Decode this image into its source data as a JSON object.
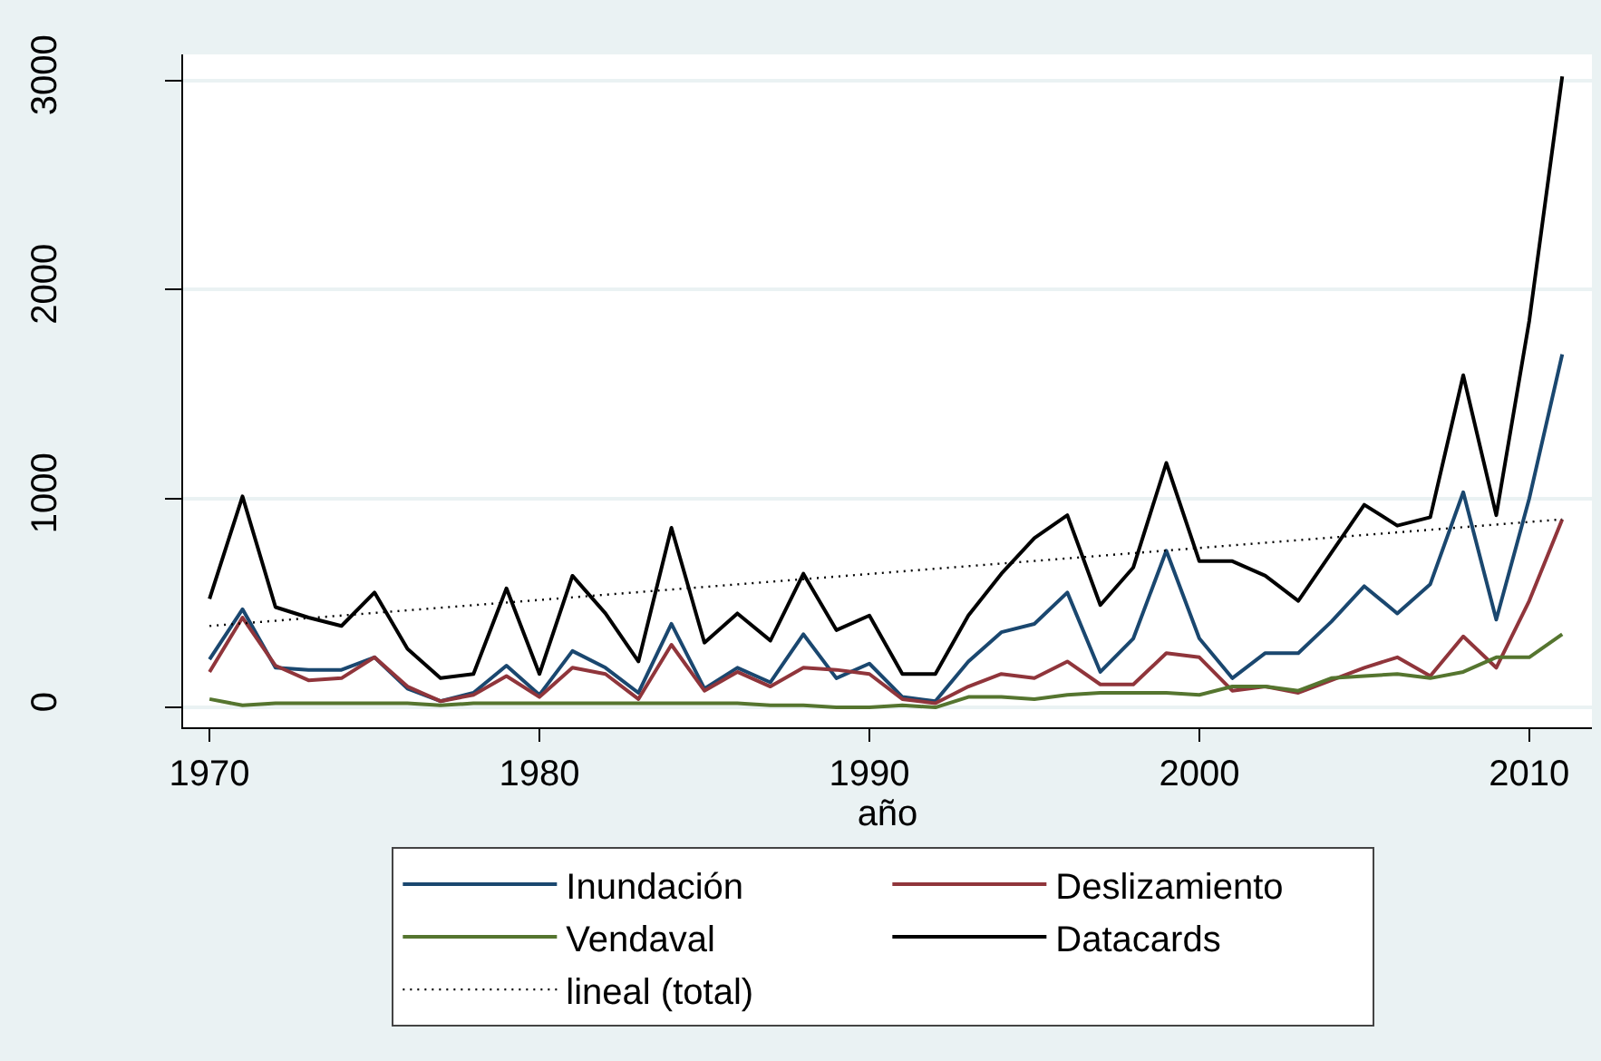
{
  "chart_data": {
    "type": "line",
    "xlabel": "año",
    "x": [
      1970,
      1971,
      1972,
      1973,
      1974,
      1975,
      1976,
      1977,
      1978,
      1979,
      1980,
      1981,
      1982,
      1983,
      1984,
      1985,
      1986,
      1987,
      1988,
      1989,
      1990,
      1991,
      1992,
      1993,
      1994,
      1995,
      1996,
      1997,
      1998,
      1999,
      2000,
      2001,
      2002,
      2003,
      2004,
      2005,
      2006,
      2007,
      2008,
      2009,
      2010,
      2011
    ],
    "series": [
      {
        "name": "Inundación",
        "color": "#1a476f",
        "values": [
          230,
          470,
          190,
          180,
          180,
          240,
          90,
          30,
          70,
          200,
          60,
          270,
          190,
          70,
          400,
          90,
          190,
          120,
          350,
          140,
          210,
          50,
          30,
          220,
          360,
          400,
          550,
          170,
          330,
          750,
          330,
          140,
          260,
          260,
          410,
          580,
          450,
          590,
          1030,
          420,
          1000,
          1690
        ]
      },
      {
        "name": "Deslizamiento",
        "color": "#90353b",
        "values": [
          170,
          430,
          200,
          130,
          140,
          240,
          100,
          30,
          60,
          150,
          50,
          190,
          160,
          40,
          300,
          80,
          170,
          100,
          190,
          180,
          160,
          40,
          20,
          100,
          160,
          140,
          220,
          110,
          110,
          260,
          240,
          80,
          100,
          70,
          130,
          190,
          240,
          150,
          340,
          190,
          510,
          900
        ]
      },
      {
        "name": "Vendaval",
        "color": "#55752f",
        "values": [
          40,
          10,
          20,
          20,
          20,
          20,
          20,
          10,
          20,
          20,
          20,
          20,
          20,
          20,
          20,
          20,
          20,
          10,
          10,
          0,
          0,
          10,
          0,
          50,
          50,
          40,
          60,
          70,
          70,
          70,
          60,
          100,
          100,
          80,
          140,
          150,
          160,
          140,
          170,
          240,
          240,
          350
        ]
      },
      {
        "name": "Datacards",
        "color": "#000000",
        "values": [
          520,
          1010,
          480,
          430,
          390,
          550,
          280,
          140,
          160,
          570,
          160,
          630,
          450,
          220,
          860,
          310,
          450,
          320,
          640,
          370,
          440,
          160,
          160,
          440,
          640,
          810,
          920,
          490,
          670,
          1170,
          700,
          700,
          630,
          510,
          740,
          970,
          870,
          910,
          1590,
          920,
          1850,
          3020
        ]
      },
      {
        "name": "lineal (total)",
        "type": "line",
        "color": "#000000",
        "line_style": "dotted",
        "x": [
          1970,
          2011
        ],
        "values": [
          390,
          900
        ]
      }
    ],
    "xlim": [
      1969.2,
      2011.9
    ],
    "xticks": [
      1970,
      1980,
      1990,
      2000,
      2010
    ],
    "ylim": [
      -95,
      3125
    ],
    "yticks": [
      0,
      1000,
      2000,
      3000
    ],
    "grid": "y",
    "legend": "bottom",
    "marker": "none",
    "line_style": "solid"
  }
}
